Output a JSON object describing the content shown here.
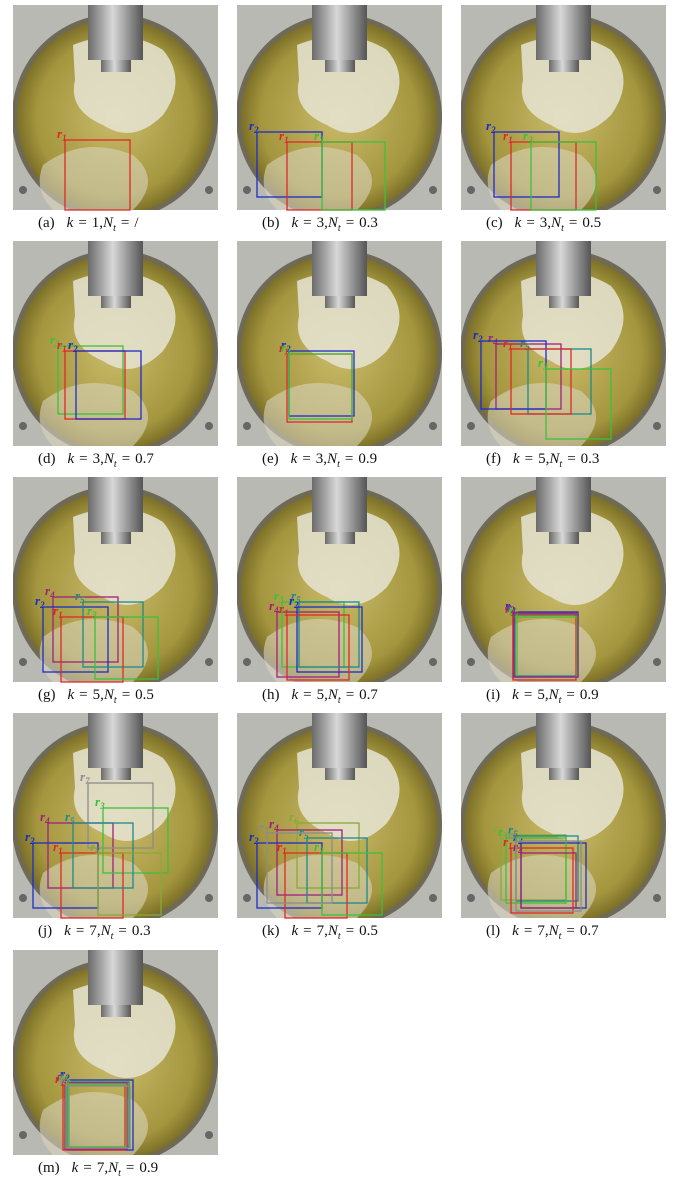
{
  "symbols": {
    "k": "k",
    "eq": "=",
    "comma": ",",
    "N": "N",
    "t": "t",
    "r": "r"
  },
  "panels": [
    {
      "label": "(a)",
      "k": "1",
      "nt": "/",
      "boxes": [
        "1"
      ]
    },
    {
      "label": "(b)",
      "k": "3",
      "nt": "0.3",
      "boxes": [
        "2",
        "1",
        "3"
      ]
    },
    {
      "label": "(c)",
      "k": "3",
      "nt": "0.5",
      "boxes": [
        "2",
        "1",
        "3"
      ]
    },
    {
      "label": "(d)",
      "k": "3",
      "nt": "0.7",
      "boxes": [
        "3",
        "1",
        "2"
      ]
    },
    {
      "label": "(e)",
      "k": "3",
      "nt": "0.9",
      "boxes": [
        "2",
        "1",
        "3"
      ]
    },
    {
      "label": "(f)",
      "k": "5",
      "nt": "0.3",
      "boxes": [
        "4",
        "5",
        "2",
        "1",
        "3"
      ]
    },
    {
      "label": "(g)",
      "k": "5",
      "nt": "0.5",
      "boxes": [
        "4",
        "2",
        "5",
        "1",
        "3"
      ]
    },
    {
      "label": "(h)",
      "k": "5",
      "nt": "0.7",
      "boxes": [
        "4",
        "3",
        "5",
        "2",
        "1"
      ]
    },
    {
      "label": "(i)",
      "k": "5",
      "nt": "0.9",
      "boxes": [
        "2",
        "1",
        "5",
        "3",
        "4"
      ]
    },
    {
      "label": "(j)",
      "k": "7",
      "nt": "0.3",
      "boxes": [
        "4",
        "7",
        "3",
        "2",
        "1",
        "5",
        "6"
      ]
    },
    {
      "label": "(k)",
      "k": "7",
      "nt": "0.5",
      "boxes": [
        "6",
        "4",
        "2",
        "5",
        "1",
        "3",
        "7"
      ]
    },
    {
      "label": "(l)",
      "k": "7",
      "nt": "0.7",
      "boxes": [
        "6",
        "5",
        "2",
        "3",
        "1",
        "4",
        "7"
      ]
    },
    {
      "label": "(m)",
      "k": "7",
      "nt": "0.9",
      "boxes": [
        "2",
        "1",
        "5",
        "3",
        "4",
        "6",
        "7"
      ]
    }
  ]
}
